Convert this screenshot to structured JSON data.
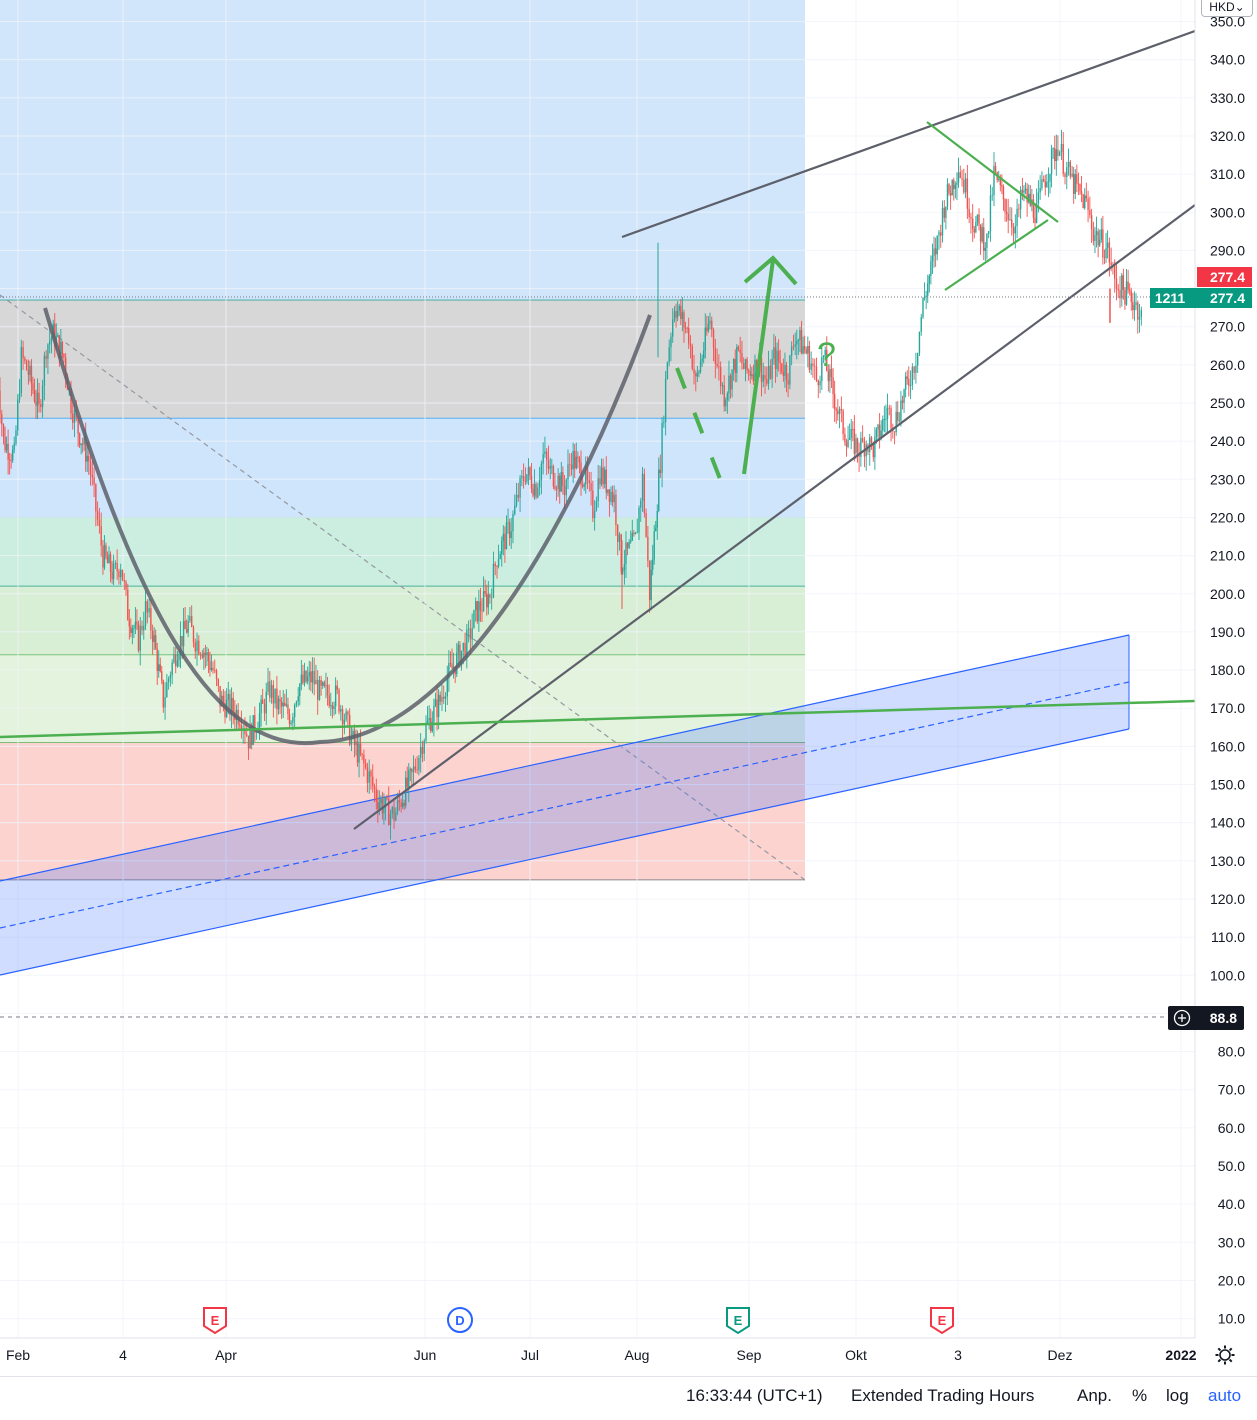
{
  "chart_data": {
    "type": "candlestick",
    "currency": "HKD",
    "y_axis": {
      "min": 10,
      "max": 350,
      "step": 10,
      "tick_labels": [
        "350.0",
        "340.0",
        "330.0",
        "320.0",
        "310.0",
        "300.0",
        "290.0",
        "277.4",
        "270.0",
        "260.0",
        "250.0",
        "240.0",
        "230.0",
        "220.0",
        "210.0",
        "200.0",
        "190.0",
        "180.0",
        "170.0",
        "160.0",
        "150.0",
        "140.0",
        "130.0",
        "120.0",
        "110.0",
        "100.0",
        "88.8",
        "80.0",
        "70.0",
        "60.0",
        "50.0",
        "40.0",
        "30.0",
        "20.0",
        "10.0"
      ]
    },
    "x_axis": {
      "tick_labels": [
        "Feb",
        "4",
        "Apr",
        "Jun",
        "Jul",
        "Aug",
        "Sep",
        "Okt",
        "3",
        "Dez",
        "2022"
      ]
    },
    "price": {
      "series": [
        [
          "Jan 27",
          260
        ],
        [
          "Jan 29",
          240
        ],
        [
          "Feb 1",
          236
        ],
        [
          "Feb 3",
          262
        ],
        [
          "Feb 5",
          258
        ],
        [
          "Feb 8",
          248
        ],
        [
          "Feb 10",
          265
        ],
        [
          "Feb 12",
          268
        ],
        [
          "Feb 15",
          262
        ],
        [
          "Feb 17",
          250
        ],
        [
          "Feb 19",
          243
        ],
        [
          "Feb 22",
          235
        ],
        [
          "Feb 24",
          222
        ],
        [
          "Feb 26",
          210
        ],
        [
          "Mar 1",
          205
        ],
        [
          "Mar 3",
          208
        ],
        [
          "Mar 5",
          195
        ],
        [
          "Mar 8",
          188
        ],
        [
          "Mar 10",
          196
        ],
        [
          "Mar 12",
          190
        ],
        [
          "Mar 15",
          172
        ],
        [
          "Mar 17",
          180
        ],
        [
          "Mar 19",
          186
        ],
        [
          "Mar 22",
          192
        ],
        [
          "Mar 24",
          188
        ],
        [
          "Mar 26",
          186
        ],
        [
          "Mar 29",
          180
        ],
        [
          "Mar 31",
          172
        ],
        [
          "Apr 6",
          168
        ],
        [
          "Apr 8",
          162
        ],
        [
          "Apr 12",
          170
        ],
        [
          "Apr 14",
          175
        ],
        [
          "Apr 16",
          171
        ],
        [
          "Apr 20",
          168
        ],
        [
          "Apr 22",
          176
        ],
        [
          "Apr 26",
          178
        ],
        [
          "Apr 28",
          174
        ],
        [
          "May 3",
          173
        ],
        [
          "May 5",
          168
        ],
        [
          "May 7",
          162
        ],
        [
          "May 10",
          156
        ],
        [
          "May 12",
          152
        ],
        [
          "May 14",
          147
        ],
        [
          "May 17",
          143
        ],
        [
          "May 19",
          142
        ],
        [
          "May 21",
          146
        ],
        [
          "May 24",
          152
        ],
        [
          "May 26",
          158
        ],
        [
          "May 28",
          165
        ],
        [
          "Jun 1",
          172
        ],
        [
          "Jun 3",
          178
        ],
        [
          "Jun 7",
          185
        ],
        [
          "Jun 9",
          188
        ],
        [
          "Jun 11",
          195
        ],
        [
          "Jun 15",
          200
        ],
        [
          "Jun 17",
          210
        ],
        [
          "Jun 21",
          218
        ],
        [
          "Jun 23",
          226
        ],
        [
          "Jun 25",
          232
        ],
        [
          "Jun 28",
          228
        ],
        [
          "Jun 30",
          236
        ],
        [
          "Jul 2",
          232
        ],
        [
          "Jul 6",
          228
        ],
        [
          "Jul 8",
          236
        ],
        [
          "Jul 12",
          230
        ],
        [
          "Jul 14",
          222
        ],
        [
          "Jul 16",
          232
        ],
        [
          "Jul 20",
          225
        ],
        [
          "Jul 22",
          208
        ],
        [
          "Jul 26",
          214
        ],
        [
          "Jul 28",
          230
        ],
        [
          "Jul 30",
          200
        ],
        [
          "Aug 2",
          235
        ],
        [
          "Aug 4",
          262
        ],
        [
          "Aug 6",
          276
        ],
        [
          "Aug 10",
          268
        ],
        [
          "Aug 12",
          255
        ],
        [
          "Aug 16",
          272
        ],
        [
          "Aug 18",
          260
        ],
        [
          "Aug 20",
          252
        ],
        [
          "Aug 24",
          263
        ],
        [
          "Aug 26",
          258
        ],
        [
          "Aug 30",
          260
        ],
        [
          "Sep 1",
          255
        ],
        [
          "Sep 3",
          262
        ],
        [
          "Sep 7",
          258
        ],
        [
          "Sep 9",
          268
        ],
        [
          "Sep 13",
          262
        ],
        [
          "Sep 15",
          256
        ],
        [
          "Sep 17",
          262
        ],
        [
          "Sep 21",
          248
        ],
        [
          "Sep 23",
          242
        ],
        [
          "Sep 27",
          238
        ],
        [
          "Sep 29",
          240
        ],
        [
          "Oct 1",
          238
        ],
        [
          "Oct 5",
          248
        ],
        [
          "Oct 7",
          245
        ],
        [
          "Oct 11",
          256
        ],
        [
          "Oct 13",
          262
        ],
        [
          "Oct 15",
          276
        ],
        [
          "Oct 19",
          292
        ],
        [
          "Oct 21",
          302
        ],
        [
          "Oct 25",
          312
        ],
        [
          "Oct 27",
          306
        ],
        [
          "Oct 29",
          298
        ],
        [
          "Nov 2",
          292
        ],
        [
          "Nov 4",
          310
        ],
        [
          "Nov 8",
          300
        ],
        [
          "Nov 10",
          296
        ],
        [
          "Nov 12",
          305
        ],
        [
          "Nov 16",
          300
        ],
        [
          "Nov 18",
          308
        ],
        [
          "Nov 22",
          318
        ],
        [
          "Nov 24",
          312
        ],
        [
          "Nov 26",
          308
        ],
        [
          "Nov 30",
          302
        ],
        [
          "Dec 2",
          295
        ],
        [
          "Dec 6",
          290
        ],
        [
          "Dec 8",
          282
        ],
        [
          "Dec 10",
          280
        ],
        [
          "Dec 14",
          276
        ],
        [
          "Dec 16",
          272
        ]
      ],
      "last_price": "277.4",
      "last_price_color": "#f23645",
      "countdown_tag": "1211",
      "countdown_value": "277.4",
      "countdown_color": "#089981",
      "crosshair_price": "88.8",
      "bull_color": "#26a69a",
      "bear_color": "#ef5350"
    },
    "fib_zones": [
      {
        "from": 277,
        "to": 246,
        "color": "#d7d7d7"
      },
      {
        "from": 246,
        "to": 220,
        "color": "#cfe5fb"
      },
      {
        "from": 220,
        "to": 202,
        "color": "#cbeee0"
      },
      {
        "from": 202,
        "to": 184,
        "color": "#d9efd5"
      },
      {
        "from": 184,
        "to": 161,
        "color": "#e4f3dd"
      },
      {
        "from": 161,
        "to": 125,
        "color": "#fcd3cf"
      }
    ],
    "fib_top_zone_color": "#d1e6fb",
    "event_markers": [
      {
        "label": "E",
        "color": "#f23645"
      },
      {
        "label": "D",
        "color": "#2962ff"
      },
      {
        "label": "E",
        "color": "#089981"
      },
      {
        "label": "E",
        "color": "#f23645"
      }
    ],
    "annotations": {
      "question_mark": "?",
      "question_color": "#4caf50",
      "trendline_color": "#5d606b",
      "green_color": "#4caf50",
      "channel_color": "#2962ff"
    },
    "grid": true
  },
  "footer": {
    "time": "16:33:44 (UTC+1)",
    "session": "Extended Trading Hours",
    "adjust": "Anp.",
    "percent": "%",
    "log": "log",
    "auto": "auto"
  }
}
